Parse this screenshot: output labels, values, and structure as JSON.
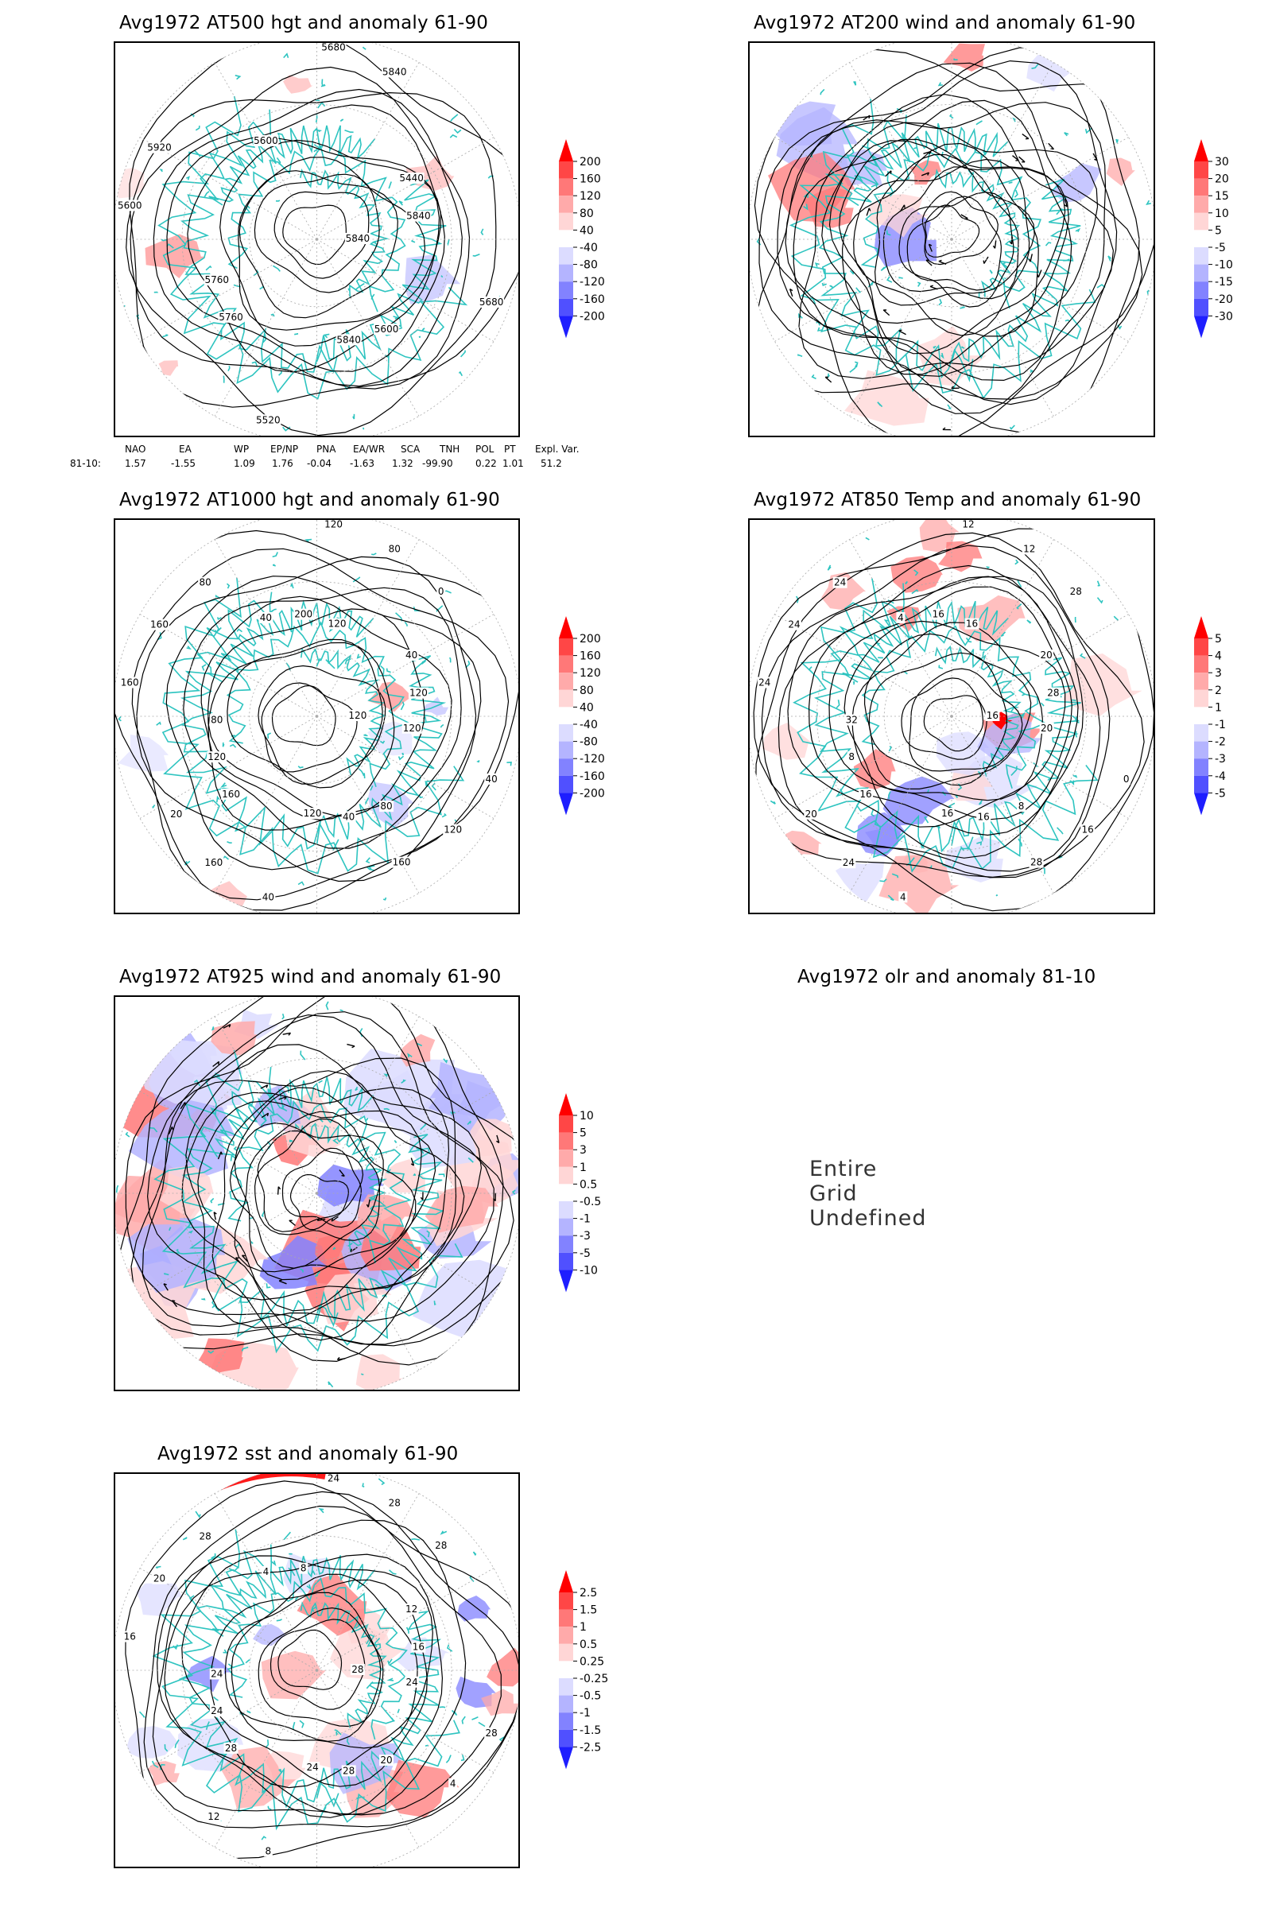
{
  "panels": [
    {
      "id": "p1",
      "title": "Avg1972 AT500 hgt and anomaly 61-90",
      "contour_labels": [
        "5840",
        "5760",
        "5680",
        "5600",
        "5600",
        "5440",
        "5520",
        "5600",
        "5680",
        "5760",
        "5840",
        "5840",
        "5920",
        "5840"
      ],
      "scale": [
        "200",
        "160",
        "120",
        "80",
        "40",
        "-40",
        "-80",
        "-120",
        "-160",
        "-200"
      ]
    },
    {
      "id": "p2",
      "title": "Avg1972 AT200 wind and anomaly 61-90",
      "contour_labels": [],
      "scale": [
        "30",
        "20",
        "15",
        "10",
        "5",
        "-5",
        "-10",
        "-15",
        "-20",
        "-30"
      ]
    },
    {
      "id": "p3",
      "title": "Avg1972 AT1000 hgt and anomaly 61-90",
      "contour_labels": [
        "120",
        "160",
        "120",
        "80",
        "160",
        "40",
        "40",
        "40",
        "40",
        "120",
        "80",
        "40",
        "160",
        "120",
        "160",
        "200",
        "120",
        "80",
        "0",
        "120",
        "80",
        "120",
        "20",
        "120",
        "160"
      ],
      "scale": [
        "200",
        "160",
        "120",
        "80",
        "40",
        "-40",
        "-80",
        "-120",
        "-160",
        "-200"
      ]
    },
    {
      "id": "p4",
      "title": "Avg1972 AT850 Temp and anomaly 61-90",
      "contour_labels": [
        "16",
        "16",
        "12",
        "8",
        "24",
        "20",
        "4",
        "4",
        "0",
        "8",
        "12",
        "16",
        "24",
        "28",
        "24",
        "16",
        "16",
        "32",
        "28",
        "16",
        "24",
        "20",
        "20",
        "16",
        "28"
      ],
      "scale": [
        "5",
        "4",
        "3",
        "2",
        "1",
        "-1",
        "-2",
        "-3",
        "-4",
        "-5"
      ]
    },
    {
      "id": "p5",
      "title": "Avg1972 AT925 wind and anomaly 61-90",
      "contour_labels": [],
      "scale": [
        "10",
        "5",
        "3",
        "1",
        "0.5",
        "-0.5",
        "-1",
        "-3",
        "-5",
        "-10"
      ]
    },
    {
      "id": "p6",
      "title": "Avg1972 olr and anomaly 81-10",
      "message": "Entire Grid Undefined"
    },
    {
      "id": "p7",
      "title": "Avg1972 sst and anomaly 61-90",
      "contour_labels": [
        "28",
        "28",
        "24",
        "20",
        "16",
        "12",
        "8",
        "4",
        "28",
        "24",
        "28",
        "28",
        "20",
        "16",
        "12",
        "8",
        "4",
        "24",
        "28",
        "24",
        "28",
        "24"
      ],
      "scale": [
        "2.5",
        "1.5",
        "1",
        "0.5",
        "0.25",
        "-0.25",
        "-0.5",
        "-1",
        "-1.5",
        "-2.5"
      ]
    }
  ],
  "teleconnection": {
    "headers": [
      "NAO",
      "EA",
      "WP",
      "EP/NP",
      "PNA",
      "EA/WR",
      "SCA",
      "TNH",
      "POL",
      "PT",
      "Expl. Var."
    ],
    "row_label": "81-10:",
    "values": [
      "1.57",
      "-1.55",
      "1.09",
      "1.76",
      "-0.04",
      "-1.63",
      "1.32",
      "-99.90",
      "0.22",
      "1.01",
      "51.2"
    ]
  },
  "colors": {
    "coast": "#2ec4c0",
    "red_scale": [
      "#ff0000",
      "#ff4646",
      "#ff7878",
      "#ffaaaa",
      "#ffd6d6"
    ],
    "blue_scale": [
      "#dcdcff",
      "#b4b4ff",
      "#8282ff",
      "#5050ff",
      "#1e1eff"
    ],
    "contour": "#000000",
    "grid": "#aaaaaa"
  }
}
